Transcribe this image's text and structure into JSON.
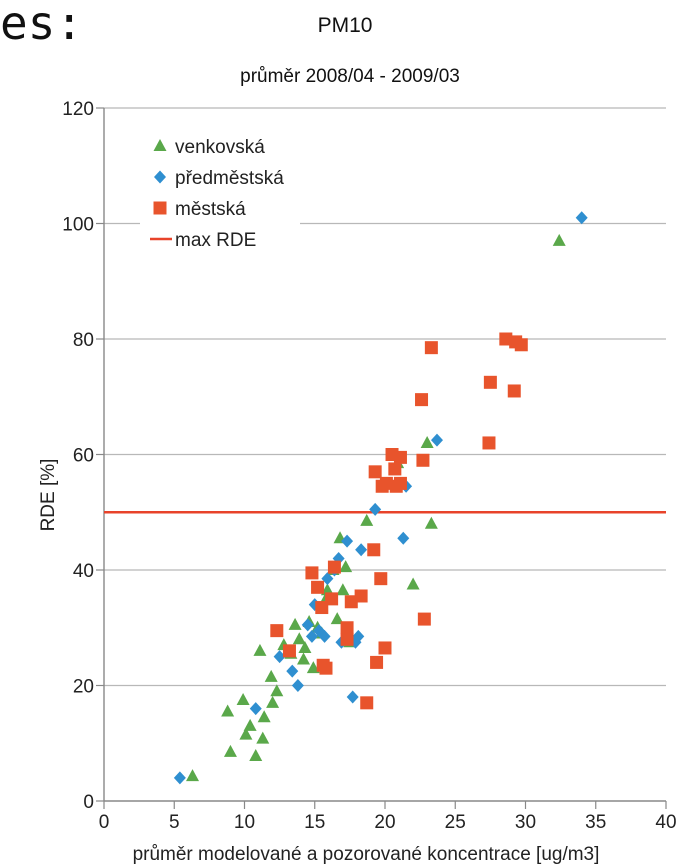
{
  "fragment_text": "es:",
  "chart_data": {
    "type": "scatter",
    "title": "PM10",
    "subtitle": "průměr 2008/04 - 2009/03",
    "xlabel": "průměr modelované a pozorované koncentrace  [ug/m3]",
    "ylabel": "RDE   [%]",
    "xlim": [
      0,
      40
    ],
    "ylim": [
      0,
      120
    ],
    "x_ticks": [
      "0",
      "5",
      "10",
      "15",
      "20",
      "25",
      "30",
      "35",
      "40"
    ],
    "y_ticks": [
      "0",
      "20",
      "40",
      "60",
      "80",
      "100",
      "120"
    ],
    "grid": "horizontal",
    "legend_position": "top-left",
    "reference_line": {
      "name": "max RDE",
      "y": 50,
      "color": "#e8432a"
    },
    "series": [
      {
        "name": "venkovská",
        "marker": "triangle",
        "color": "#5aa84a",
        "points": [
          [
            6.3,
            4.3
          ],
          [
            8.8,
            15.5
          ],
          [
            9.0,
            8.5
          ],
          [
            9.9,
            17.5
          ],
          [
            10.1,
            11.5
          ],
          [
            10.4,
            13.0
          ],
          [
            10.8,
            7.8
          ],
          [
            11.1,
            26.0
          ],
          [
            11.3,
            10.8
          ],
          [
            11.4,
            14.5
          ],
          [
            11.9,
            21.5
          ],
          [
            12.0,
            17.0
          ],
          [
            12.3,
            19.0
          ],
          [
            12.8,
            27.0
          ],
          [
            13.3,
            25.5
          ],
          [
            13.6,
            30.5
          ],
          [
            13.9,
            28.0
          ],
          [
            14.2,
            24.5
          ],
          [
            14.3,
            26.5
          ],
          [
            14.6,
            31.0
          ],
          [
            14.9,
            23.0
          ],
          [
            15.2,
            30.0
          ],
          [
            15.5,
            29.0
          ],
          [
            15.8,
            35.0
          ],
          [
            15.9,
            36.5
          ],
          [
            16.3,
            40.0
          ],
          [
            16.6,
            31.5
          ],
          [
            16.8,
            45.5
          ],
          [
            17.0,
            36.5
          ],
          [
            17.2,
            40.5
          ],
          [
            17.5,
            27.5
          ],
          [
            18.7,
            48.5
          ],
          [
            20.9,
            58.5
          ],
          [
            22.0,
            37.5
          ],
          [
            23.0,
            62.0
          ],
          [
            23.3,
            48.0
          ],
          [
            32.4,
            97.0
          ]
        ]
      },
      {
        "name": "předměstská",
        "marker": "diamond",
        "color": "#2f8fd0",
        "points": [
          [
            5.4,
            4.0
          ],
          [
            10.8,
            16.0
          ],
          [
            12.5,
            25.0
          ],
          [
            13.4,
            22.5
          ],
          [
            13.8,
            20.0
          ],
          [
            14.5,
            30.5
          ],
          [
            14.8,
            28.5
          ],
          [
            15.0,
            34.0
          ],
          [
            15.3,
            29.5
          ],
          [
            15.7,
            28.5
          ],
          [
            15.9,
            38.5
          ],
          [
            16.4,
            40.0
          ],
          [
            16.7,
            42.0
          ],
          [
            16.9,
            27.5
          ],
          [
            17.3,
            45.0
          ],
          [
            17.7,
            18.0
          ],
          [
            17.9,
            27.5
          ],
          [
            18.1,
            28.5
          ],
          [
            18.3,
            43.5
          ],
          [
            19.3,
            50.5
          ],
          [
            21.3,
            45.5
          ],
          [
            21.5,
            54.5
          ],
          [
            23.7,
            62.5
          ],
          [
            34.0,
            101.0
          ]
        ]
      },
      {
        "name": "městská",
        "marker": "square",
        "color": "#e8542c",
        "points": [
          [
            12.3,
            29.5
          ],
          [
            13.2,
            26.0
          ],
          [
            14.8,
            39.5
          ],
          [
            15.2,
            37.0
          ],
          [
            15.5,
            33.5
          ],
          [
            15.6,
            23.5
          ],
          [
            15.8,
            23.0
          ],
          [
            16.2,
            35.0
          ],
          [
            16.4,
            40.5
          ],
          [
            17.3,
            30.0
          ],
          [
            17.3,
            28.0
          ],
          [
            17.6,
            34.5
          ],
          [
            18.3,
            35.5
          ],
          [
            18.7,
            17.0
          ],
          [
            19.2,
            43.5
          ],
          [
            19.3,
            57.0
          ],
          [
            19.4,
            24.0
          ],
          [
            19.7,
            38.5
          ],
          [
            19.8,
            54.5
          ],
          [
            20.0,
            26.5
          ],
          [
            20.1,
            55.0
          ],
          [
            20.5,
            60.0
          ],
          [
            20.7,
            57.5
          ],
          [
            20.8,
            54.5
          ],
          [
            21.1,
            55.0
          ],
          [
            21.1,
            59.5
          ],
          [
            22.6,
            69.5
          ],
          [
            22.8,
            31.5
          ],
          [
            22.7,
            59.0
          ],
          [
            23.3,
            78.5
          ],
          [
            27.4,
            62.0
          ],
          [
            27.5,
            72.5
          ],
          [
            28.6,
            80.0
          ],
          [
            29.2,
            71.0
          ],
          [
            29.3,
            79.5
          ],
          [
            29.7,
            79.0
          ]
        ]
      }
    ]
  }
}
